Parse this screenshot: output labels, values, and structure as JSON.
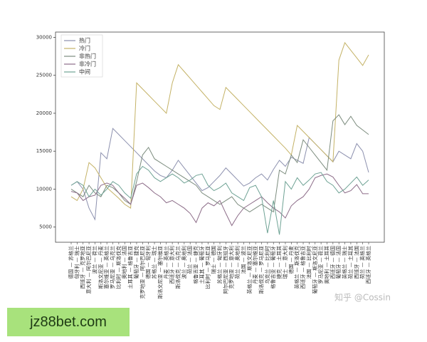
{
  "chart_data": {
    "type": "line",
    "categories": [
      "德国 — 苏格兰",
      "匈牙利 — 瑞士",
      "西班牙 — 克罗地亚",
      "意大利 — 阿尔巴尼亚",
      "波兰 — 荷兰",
      "斯洛文尼亚 — 丹麦",
      "塞尔维亚 — 英格兰",
      "罗马尼亚 — 乌克兰",
      "比利时 — 斯洛伐克",
      "奥地利 — 法国",
      "土耳其 — 格鲁吉亚",
      "葡萄牙 — 捷克",
      "克罗地亚 — 阿尔巴尼亚",
      "德国 — 匈牙利",
      "苏格兰 — 瑞士",
      "斯洛文尼亚 — 塞尔维亚",
      "丹麦 — 英格兰",
      "西班牙 — 意大利",
      "斯洛伐克 — 乌克兰",
      "波兰 — 奥地利",
      "荷兰 — 法国",
      "格鲁吉亚 — 捷克",
      "土耳其 — 葡萄牙",
      "比利时 — 罗马尼亚",
      "瑞士 — 德国",
      "苏格兰 — 匈牙利",
      "阿尔巴尼亚 — 西班牙",
      "克罗地亚 — 意大利",
      "荷兰 — 奥地利",
      "法国 — 波兰",
      "英格兰 — 斯洛文尼亚",
      "丹麦 — 塞尔维亚",
      "斯洛伐克 — 罗马尼亚",
      "乌克兰 — 比利时",
      "格鲁吉亚 — 葡萄牙",
      "捷克 — 土耳其",
      "瑞士 — 意大利",
      "德国 — 丹麦",
      "英格兰 — 斯洛伐克",
      "西班牙 — 格鲁吉亚",
      "法国 — 比利时",
      "葡萄牙 — 斯洛文尼亚",
      "罗马尼亚 — 荷兰",
      "奥地利 — 土耳其",
      "西班牙 — 德国",
      "葡萄牙 — 法国",
      "英格兰 — 瑞士",
      "荷兰 — 土耳其",
      "西班牙 — 法国",
      "荷兰 — 英格兰",
      "西班牙 — 英格兰"
    ],
    "series": [
      {
        "name": "热门",
        "color": "#8c90ae",
        "values": [
          10500,
          11000,
          10000,
          7500,
          6000,
          14800,
          14000,
          18000,
          17200,
          16400,
          15600,
          14800,
          14000,
          13200,
          12400,
          11800,
          11500,
          12500,
          13800,
          12800,
          11800,
          10800,
          9800,
          10200,
          11000,
          11800,
          12800,
          12000,
          11200,
          10400,
          10800,
          11500,
          12000,
          11200,
          12600,
          13800,
          13000,
          14200,
          13800,
          13400,
          16800,
          16000,
          15200,
          14400,
          13600,
          15000,
          14500,
          14000,
          16000,
          15000,
          12200
        ]
      },
      {
        "name": "冷门",
        "color": "#c4b266",
        "values": [
          9000,
          8500,
          10000,
          13500,
          12800,
          11500,
          10200,
          9500,
          8800,
          8000,
          7500,
          24000,
          23200,
          22400,
          21600,
          20800,
          20000,
          24000,
          26400,
          25500,
          24600,
          23700,
          22800,
          21900,
          21000,
          20500,
          23400,
          22600,
          21800,
          21000,
          20200,
          19400,
          18600,
          17800,
          17000,
          16200,
          15400,
          14500,
          18400,
          17600,
          16800,
          16000,
          15200,
          14400,
          13600,
          27000,
          29300,
          28300,
          27300,
          26300,
          27700
        ]
      },
      {
        "name": "非热门",
        "color": "#7c8c7e",
        "values": [
          10000,
          9500,
          9000,
          10500,
          9500,
          9000,
          10500,
          10200,
          9500,
          8500,
          8000,
          11000,
          14500,
          15500,
          14000,
          13500,
          13000,
          12500,
          12000,
          11500,
          11000,
          10500,
          9500,
          9000,
          8500,
          8000,
          8500,
          9000,
          8000,
          7500,
          7000,
          7500,
          8000,
          7500,
          7000,
          12500,
          12000,
          14500,
          13500,
          16500,
          15500,
          14500,
          13500,
          12500,
          19000,
          19800,
          18500,
          19600,
          18400,
          17800,
          17200
        ]
      },
      {
        "name": "非冷门",
        "color": "#8c6c88",
        "values": [
          9700,
          9500,
          8500,
          9000,
          9200,
          10500,
          10800,
          10500,
          9500,
          8800,
          8000,
          10500,
          10800,
          10200,
          9500,
          9000,
          8200,
          8500,
          8000,
          7500,
          6800,
          5600,
          7500,
          8200,
          7800,
          8500,
          6800,
          5200,
          6500,
          7500,
          8000,
          8500,
          9000,
          8200,
          7500,
          7000,
          6200,
          7800,
          8500,
          9000,
          10000,
          11500,
          11800,
          12000,
          11600,
          10500,
          9500,
          9800,
          10600,
          9400,
          9400
        ]
      },
      {
        "name": "中间",
        "color": "#6ea294",
        "values": [
          10500,
          11000,
          10500,
          9000,
          10000,
          9200,
          10000,
          11000,
          10500,
          9500,
          8800,
          12000,
          13000,
          12500,
          11500,
          11000,
          11500,
          12000,
          11500,
          10800,
          11200,
          11800,
          12000,
          10500,
          9800,
          10200,
          10800,
          9500,
          9000,
          8500,
          10200,
          10500,
          9000,
          4200,
          8500,
          4000,
          11000,
          10000,
          11500,
          10500,
          11200,
          12000,
          12200,
          11000,
          10500,
          9500,
          10000,
          10800,
          11600,
          10500,
          11200
        ]
      }
    ],
    "ylim": [
      3000,
      30700
    ],
    "yticks": [
      5000,
      10000,
      15000,
      20000,
      25000,
      30000
    ],
    "legend": "upper-left"
  },
  "watermark": "知乎 @Cossin",
  "overlay": "jz88bet.com"
}
